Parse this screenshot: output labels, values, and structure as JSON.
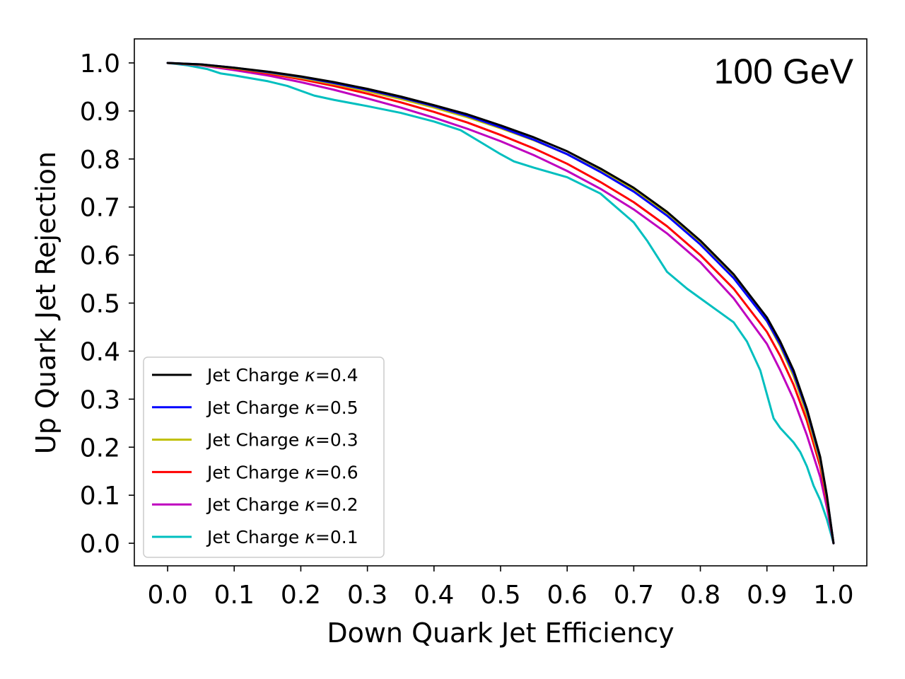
{
  "chart_data": {
    "type": "line",
    "title": "",
    "annotation": "100 GeV",
    "xlabel": "Down Quark Jet Efficiency",
    "ylabel": "Up Quark Jet Rejection",
    "xlim": [
      -0.05,
      1.05
    ],
    "ylim": [
      -0.047,
      1.05
    ],
    "xticks": [
      0.0,
      0.1,
      0.2,
      0.3,
      0.4,
      0.5,
      0.6,
      0.7,
      0.8,
      0.9,
      1.0
    ],
    "xtick_labels": [
      "0.0",
      "0.1",
      "0.2",
      "0.3",
      "0.4",
      "0.5",
      "0.6",
      "0.7",
      "0.8",
      "0.9",
      "1.0"
    ],
    "yticks": [
      0.0,
      0.1,
      0.2,
      0.3,
      0.4,
      0.5,
      0.6,
      0.7,
      0.8,
      0.9,
      1.0
    ],
    "ytick_labels": [
      "0.0",
      "0.1",
      "0.2",
      "0.3",
      "0.4",
      "0.5",
      "0.6",
      "0.7",
      "0.8",
      "0.9",
      "1.0"
    ],
    "grid": false,
    "legend_position": "lower-left",
    "series": [
      {
        "name": "Jet Charge κ=0.4",
        "label_prefix": "Jet Charge ",
        "kappa_symbol": "κ",
        "label_suffix": "=0.4",
        "color": "#000000",
        "x": [
          0.0,
          0.05,
          0.1,
          0.15,
          0.2,
          0.25,
          0.3,
          0.35,
          0.4,
          0.45,
          0.5,
          0.55,
          0.6,
          0.65,
          0.7,
          0.75,
          0.8,
          0.85,
          0.9,
          0.92,
          0.94,
          0.96,
          0.98,
          0.99,
          1.0
        ],
        "y": [
          1.0,
          0.997,
          0.99,
          0.982,
          0.972,
          0.96,
          0.946,
          0.93,
          0.912,
          0.893,
          0.87,
          0.845,
          0.816,
          0.78,
          0.74,
          0.69,
          0.63,
          0.56,
          0.47,
          0.42,
          0.36,
          0.28,
          0.18,
          0.1,
          0.0
        ]
      },
      {
        "name": "Jet Charge κ=0.5",
        "label_prefix": "Jet Charge ",
        "kappa_symbol": "κ",
        "label_suffix": "=0.5",
        "color": "#0000ff",
        "x": [
          0.0,
          0.05,
          0.1,
          0.15,
          0.2,
          0.25,
          0.3,
          0.35,
          0.4,
          0.45,
          0.5,
          0.55,
          0.6,
          0.65,
          0.7,
          0.75,
          0.8,
          0.85,
          0.9,
          0.92,
          0.94,
          0.96,
          0.98,
          0.99,
          1.0
        ],
        "y": [
          1.0,
          0.997,
          0.99,
          0.981,
          0.971,
          0.958,
          0.944,
          0.928,
          0.91,
          0.89,
          0.866,
          0.84,
          0.81,
          0.773,
          0.732,
          0.682,
          0.622,
          0.552,
          0.463,
          0.414,
          0.354,
          0.276,
          0.177,
          0.098,
          0.0
        ]
      },
      {
        "name": "Jet Charge κ=0.3",
        "label_prefix": "Jet Charge ",
        "kappa_symbol": "κ",
        "label_suffix": "=0.3",
        "color": "#bfbf00",
        "x": [
          0.0,
          0.05,
          0.1,
          0.15,
          0.2,
          0.25,
          0.3,
          0.35,
          0.4,
          0.45,
          0.5,
          0.55,
          0.6,
          0.65,
          0.7,
          0.75,
          0.8,
          0.85,
          0.9,
          0.92,
          0.94,
          0.96,
          0.98,
          0.99,
          1.0
        ],
        "y": [
          1.0,
          0.996,
          0.989,
          0.98,
          0.969,
          0.956,
          0.941,
          0.925,
          0.907,
          0.887,
          0.864,
          0.839,
          0.81,
          0.775,
          0.736,
          0.686,
          0.626,
          0.555,
          0.462,
          0.41,
          0.348,
          0.268,
          0.17,
          0.094,
          0.0
        ]
      },
      {
        "name": "Jet Charge κ=0.6",
        "label_prefix": "Jet Charge ",
        "kappa_symbol": "κ",
        "label_suffix": "=0.6",
        "color": "#ff0000",
        "x": [
          0.0,
          0.05,
          0.1,
          0.15,
          0.2,
          0.25,
          0.3,
          0.35,
          0.4,
          0.45,
          0.5,
          0.55,
          0.6,
          0.65,
          0.7,
          0.75,
          0.8,
          0.85,
          0.9,
          0.92,
          0.94,
          0.96,
          0.98,
          0.99,
          1.0
        ],
        "y": [
          1.0,
          0.996,
          0.988,
          0.978,
          0.966,
          0.952,
          0.936,
          0.918,
          0.898,
          0.876,
          0.85,
          0.822,
          0.79,
          0.752,
          0.71,
          0.66,
          0.6,
          0.53,
          0.44,
          0.39,
          0.33,
          0.255,
          0.16,
          0.088,
          0.0
        ]
      },
      {
        "name": "Jet Charge κ=0.2",
        "label_prefix": "Jet Charge ",
        "kappa_symbol": "κ",
        "label_suffix": "=0.2",
        "color": "#bf00bf",
        "x": [
          0.0,
          0.05,
          0.1,
          0.15,
          0.2,
          0.25,
          0.3,
          0.35,
          0.4,
          0.45,
          0.5,
          0.55,
          0.6,
          0.65,
          0.7,
          0.75,
          0.8,
          0.85,
          0.9,
          0.92,
          0.94,
          0.96,
          0.98,
          0.99,
          1.0
        ],
        "y": [
          1.0,
          0.995,
          0.985,
          0.974,
          0.96,
          0.944,
          0.926,
          0.907,
          0.886,
          0.863,
          0.837,
          0.808,
          0.775,
          0.738,
          0.695,
          0.645,
          0.585,
          0.51,
          0.415,
          0.36,
          0.3,
          0.225,
          0.138,
          0.075,
          0.0
        ]
      },
      {
        "name": "Jet Charge κ=0.1",
        "label_prefix": "Jet Charge ",
        "kappa_symbol": "κ",
        "label_suffix": "=0.1",
        "color": "#00bfbf",
        "x": [
          0.0,
          0.03,
          0.06,
          0.08,
          0.1,
          0.15,
          0.18,
          0.2,
          0.22,
          0.25,
          0.3,
          0.35,
          0.4,
          0.44,
          0.47,
          0.5,
          0.52,
          0.55,
          0.6,
          0.65,
          0.7,
          0.72,
          0.75,
          0.78,
          0.8,
          0.85,
          0.87,
          0.89,
          0.9,
          0.91,
          0.92,
          0.94,
          0.95,
          0.96,
          0.97,
          0.98,
          0.99,
          1.0
        ],
        "y": [
          1.0,
          0.995,
          0.987,
          0.978,
          0.974,
          0.962,
          0.952,
          0.942,
          0.932,
          0.923,
          0.91,
          0.896,
          0.878,
          0.86,
          0.835,
          0.81,
          0.795,
          0.782,
          0.762,
          0.728,
          0.668,
          0.63,
          0.565,
          0.53,
          0.51,
          0.46,
          0.42,
          0.36,
          0.31,
          0.26,
          0.24,
          0.21,
          0.19,
          0.16,
          0.12,
          0.09,
          0.05,
          0.0
        ]
      }
    ]
  }
}
